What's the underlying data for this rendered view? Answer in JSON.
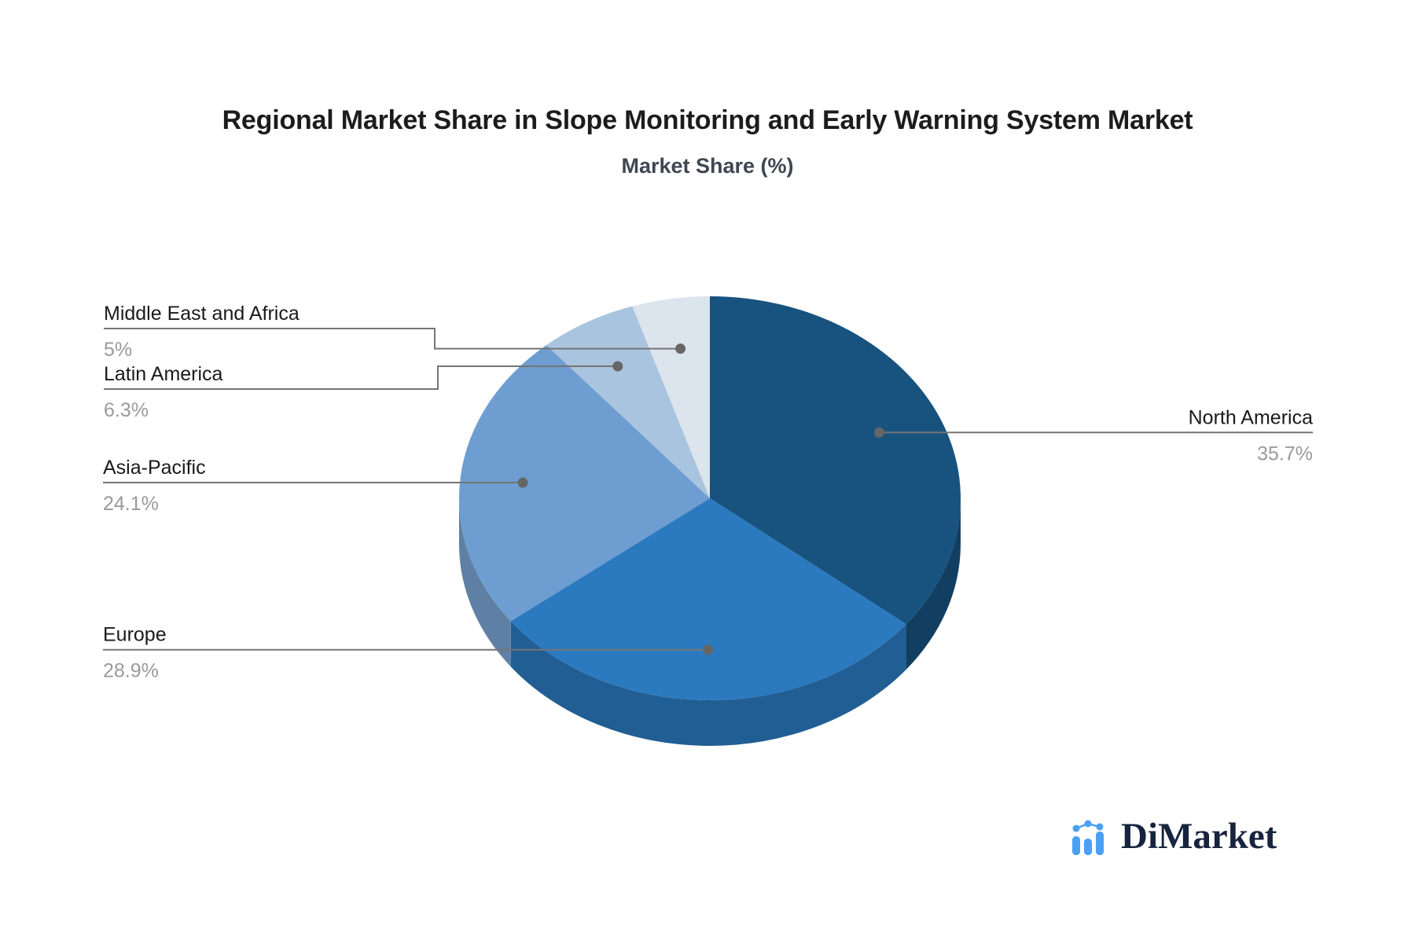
{
  "header": {
    "title": "Regional Market Share in Slope Monitoring and Early Warning System Market",
    "subtitle": "Market Share (%)"
  },
  "chart_data": {
    "type": "pie",
    "style": "3d",
    "title": "Regional Market Share in Slope Monitoring and Early Warning System Market",
    "subtitle": "Market Share (%)",
    "unit": "%",
    "start_angle_deg": 0,
    "direction": "clockwise",
    "legend_position": "none",
    "slices": [
      {
        "label": "North America",
        "value": 35.7,
        "value_label": "35.7%",
        "color": "#185380",
        "side_color": "#123f61"
      },
      {
        "label": "Europe",
        "value": 28.9,
        "value_label": "28.9%",
        "color": "#2b7abf",
        "side_color": "#215e93"
      },
      {
        "label": "Asia-Pacific",
        "value": 24.1,
        "value_label": "24.1%",
        "color": "#6e9dd1",
        "side_color": "#5e80a4"
      },
      {
        "label": "Latin America",
        "value": 6.3,
        "value_label": "6.3%",
        "color": "#a9c4de",
        "side_color": "#8fb0ce"
      },
      {
        "label": "Middle East and Africa",
        "value": 5,
        "value_label": "5%",
        "color": "#dce4ee",
        "side_color": "#c2cfe0"
      }
    ]
  },
  "branding": {
    "logo_text": "DiMarket",
    "logo_text_color": "#17243e",
    "logo_icon_color": "#4aa0f4"
  },
  "colors": {
    "label_text": "#1a1a1a",
    "value_text": "#9a9a9a",
    "connector_line": "#757575",
    "connector_dot": "#666666",
    "title_text": "#1c1c1c",
    "subtitle_text": "#3e4751"
  }
}
